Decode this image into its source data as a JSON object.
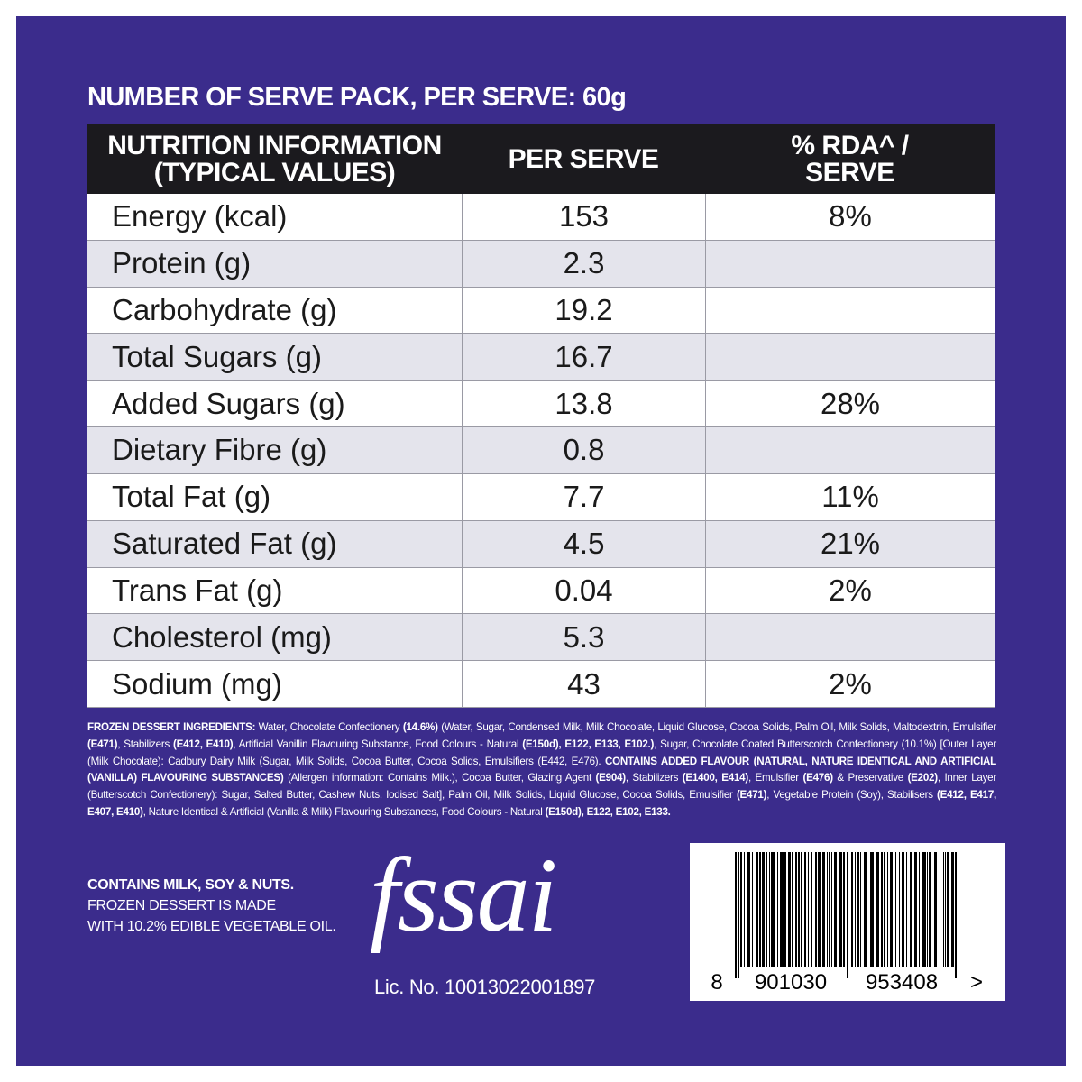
{
  "header": {
    "title": "NUMBER OF SERVE PACK, PER SERVE: 60g"
  },
  "table": {
    "columns": [
      [
        "NUTRITION INFORMATION",
        "(TYPICAL VALUES)"
      ],
      [
        "PER SERVE"
      ],
      [
        "% RDA^ /",
        "SERVE"
      ]
    ],
    "rows": [
      [
        "Energy (kcal)",
        "153",
        "8%"
      ],
      [
        "Protein (g)",
        "2.3",
        null
      ],
      [
        "Carbohydrate (g)",
        "19.2",
        null
      ],
      [
        "Total Sugars (g)",
        "16.7",
        null
      ],
      [
        "Added Sugars (g)",
        "13.8",
        "28%"
      ],
      [
        "Dietary Fibre (g)",
        "0.8",
        null
      ],
      [
        "Total Fat (g)",
        "7.7",
        "11%"
      ],
      [
        "Saturated Fat (g)",
        "4.5",
        "21%"
      ],
      [
        "Trans Fat (g)",
        "0.04",
        "2%"
      ],
      [
        "Cholesterol (mg)",
        "5.3",
        null
      ],
      [
        "Sodium (mg)",
        "43",
        "2%"
      ]
    ]
  },
  "ingredients": [
    {
      "text": "FROZEN DESSERT INGREDIENTS:",
      "bold": true
    },
    {
      "text": " Water, Chocolate Confectionery ",
      "bold": false
    },
    {
      "text": "(14.6%)",
      "bold": true
    },
    {
      "text": " (Water, Sugar, Condensed Milk, Milk Chocolate, Liquid Glucose, Cocoa Solids, Palm Oil, Milk Solids, Maltodextrin, Emulsifier ",
      "bold": false
    },
    {
      "text": "(E471)",
      "bold": true
    },
    {
      "text": ", Stabilizers ",
      "bold": false
    },
    {
      "text": "(E412, E410)",
      "bold": true
    },
    {
      "text": ", Artificial Vanillin Flavouring Substance, Food Colours - Natural ",
      "bold": false
    },
    {
      "text": "(E150d), E122, E133, E102.)",
      "bold": true
    },
    {
      "text": ", Sugar, Chocolate Coated Butterscotch Confectionery (10.1%) [Outer Layer (Milk Chocolate): Cadbury Dairy Milk (Sugar, Milk Solids, Cocoa Butter, Cocoa Solids, Emulsifiers (E442, E476). ",
      "bold": false
    },
    {
      "text": "CONTAINS ADDED FLAVOUR (NATURAL, NATURE IDENTICAL AND ARTIFICIAL (VANILLA) FLAVOURING SUBSTANCES)",
      "bold": true
    },
    {
      "text": " (Allergen information: Contains Milk.), Cocoa Butter, Glazing Agent ",
      "bold": false
    },
    {
      "text": "(E904)",
      "bold": true
    },
    {
      "text": ", Stabilizers ",
      "bold": false
    },
    {
      "text": "(E1400, E414)",
      "bold": true
    },
    {
      "text": ", Emulsifier ",
      "bold": false
    },
    {
      "text": "(E476)",
      "bold": true
    },
    {
      "text": " & Preservative ",
      "bold": false
    },
    {
      "text": "(E202)",
      "bold": true
    },
    {
      "text": ", Inner Layer (Butterscotch Confectionery): Sugar, Salted Butter, Cashew Nuts, Iodised Salt], Palm Oil, Milk Solids, Liquid Glucose, Cocoa Solids, Emulsifier ",
      "bold": false
    },
    {
      "text": "(E471)",
      "bold": true
    },
    {
      "text": ", Vegetable Protein (Soy), Stabilisers ",
      "bold": false
    },
    {
      "text": "(E412, E417, E407, E410)",
      "bold": true
    },
    {
      "text": ", Nature Identical & Artificial (Vanilla & Milk) Flavouring Substances, Food Colours - Natural ",
      "bold": false
    },
    {
      "text": "(E150d), E122, E102, E133.",
      "bold": true
    }
  ],
  "allergen": {
    "title": "CONTAINS MILK, SOY & NUTS.",
    "lines": [
      "FROZEN DESSERT IS MADE",
      "WITH 10.2% EDIBLE VEGETABLE OIL."
    ]
  },
  "fssai": {
    "logo": "fssai",
    "license": "Lic. No. 10013022001897"
  },
  "barcode": {
    "digits": [
      "8",
      "901030",
      "953408",
      ">"
    ]
  }
}
